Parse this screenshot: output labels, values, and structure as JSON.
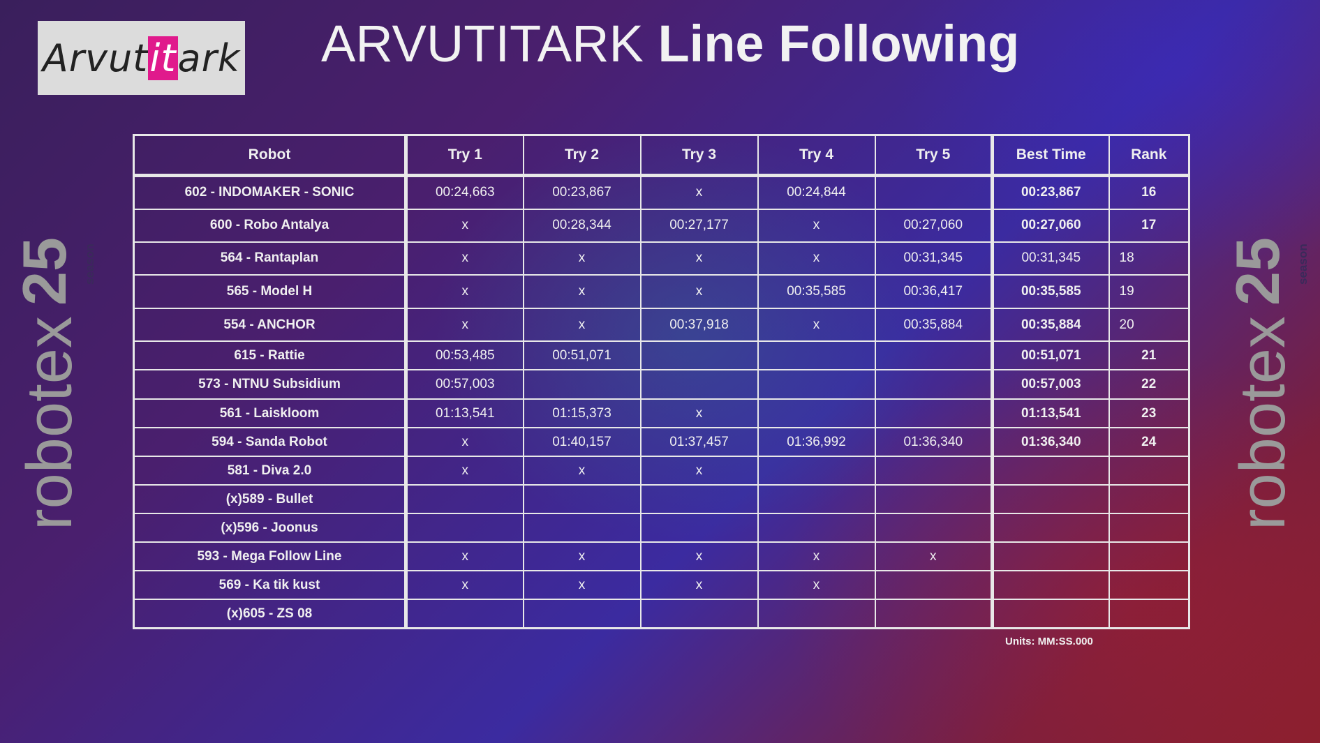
{
  "logo": {
    "prefix": "Arvut",
    "highlight": "it",
    "suffix": "ark"
  },
  "title": {
    "regular": "ARVUTITARK ",
    "bold": "Line Following"
  },
  "brand": {
    "word": "robotex",
    "number": "25",
    "season": "season"
  },
  "table": {
    "headers": [
      "Robot",
      "Try 1",
      "Try 2",
      "Try 3",
      "Try 4",
      "Try 5",
      "Best Time",
      "Rank"
    ],
    "rows": [
      {
        "robot": "602 - INDOMAKER - SONIC",
        "t1": "00:24,663",
        "t2": "00:23,867",
        "t3": "x",
        "t4": "00:24,844",
        "t5": "",
        "best": "00:23,867",
        "rank": "16"
      },
      {
        "robot": "600 - Robo Antalya",
        "t1": "x",
        "t2": "00:28,344",
        "t3": "00:27,177",
        "t4": "x",
        "t5": "00:27,060",
        "best": "00:27,060",
        "rank": "17"
      },
      {
        "robot": "564 - Rantaplan",
        "t1": "x",
        "t2": "x",
        "t3": "x",
        "t4": "x",
        "t5": "00:31,345",
        "best": "00:31,345",
        "rank": "18"
      },
      {
        "robot": "565 - Model H",
        "t1": "x",
        "t2": "x",
        "t3": "x",
        "t4": "00:35,585",
        "t5": "00:36,417",
        "best": "00:35,585",
        "rank": "19"
      },
      {
        "robot": "554 - ANCHOR",
        "t1": "x",
        "t2": "x",
        "t3": "00:37,918",
        "t4": "x",
        "t5": "00:35,884",
        "best": "00:35,884",
        "rank": "20"
      },
      {
        "robot": "615 - Rattie",
        "t1": "00:53,485",
        "t2": "00:51,071",
        "t3": "",
        "t4": "",
        "t5": "",
        "best": "00:51,071",
        "rank": "21"
      },
      {
        "robot": "573 - NTNU Subsidium",
        "t1": "00:57,003",
        "t2": "",
        "t3": "",
        "t4": "",
        "t5": "",
        "best": "00:57,003",
        "rank": "22"
      },
      {
        "robot": "561 - Laiskloom",
        "t1": "01:13,541",
        "t2": "01:15,373",
        "t3": "x",
        "t4": "",
        "t5": "",
        "best": "01:13,541",
        "rank": "23"
      },
      {
        "robot": "594 - Sanda Robot",
        "t1": "x",
        "t2": "01:40,157",
        "t3": "01:37,457",
        "t4": "01:36,992",
        "t5": "01:36,340",
        "best": "01:36,340",
        "rank": "24"
      },
      {
        "robot": "581 - Diva 2.0",
        "t1": "x",
        "t2": "x",
        "t3": "x",
        "t4": "",
        "t5": "",
        "best": "",
        "rank": ""
      },
      {
        "robot": "(x)589 - Bullet",
        "t1": "",
        "t2": "",
        "t3": "",
        "t4": "",
        "t5": "",
        "best": "",
        "rank": ""
      },
      {
        "robot": "(x)596 - Joonus",
        "t1": "",
        "t2": "",
        "t3": "",
        "t4": "",
        "t5": "",
        "best": "",
        "rank": ""
      },
      {
        "robot": "593 - Mega Follow Line",
        "t1": "x",
        "t2": "x",
        "t3": "x",
        "t4": "x",
        "t5": "x",
        "best": "",
        "rank": ""
      },
      {
        "robot": "569 - Ka tik kust",
        "t1": "x",
        "t2": "x",
        "t3": "x",
        "t4": "x",
        "t5": "",
        "best": "",
        "rank": ""
      },
      {
        "robot": "(x)605 - ZS 08",
        "t1": "",
        "t2": "",
        "t3": "",
        "t4": "",
        "t5": "",
        "best": "",
        "rank": ""
      }
    ]
  },
  "units": "Units: MM:SS.000"
}
